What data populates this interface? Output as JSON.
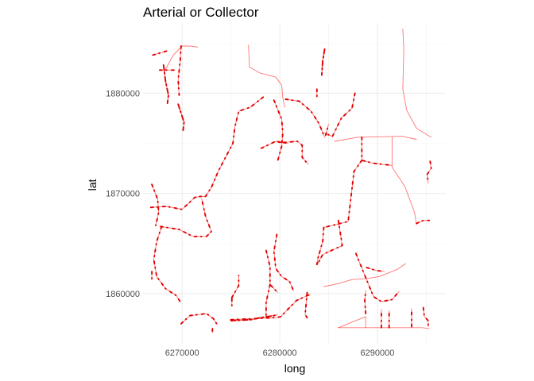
{
  "chart_data": {
    "type": "line",
    "title": "Arterial or Collector",
    "xlabel": "long",
    "ylabel": "lat",
    "xlim": [
      6266000,
      6297000
    ],
    "ylim": [
      1855000,
      1887000
    ],
    "xticks": [
      6270000,
      6280000,
      6290000
    ],
    "xtick_labels": [
      "6270000",
      "6280000",
      "6290000"
    ],
    "yticks": [
      1860000,
      1870000,
      1880000
    ],
    "ytick_labels": [
      "1860000",
      "1870000",
      "1880000"
    ],
    "grid": true,
    "legend": "none",
    "line_color": "#ff0000",
    "series": [
      {
        "d": [
          0
        ],
        "points": [
          [
            6268200,
            1882200
          ],
          [
            6269100,
            1883800
          ],
          [
            6270000,
            1884700
          ],
          [
            6270800,
            1884700
          ],
          [
            6271600,
            1884600
          ]
        ]
      },
      {
        "d": [
          1
        ],
        "points": [
          [
            6267000,
            1883800
          ],
          [
            6268400,
            1884200
          ]
        ]
      },
      {
        "d": [
          2
        ],
        "points": [
          [
            6268100,
            1882800
          ],
          [
            6268300,
            1881200
          ],
          [
            6268600,
            1879800
          ],
          [
            6268500,
            1879000
          ]
        ]
      },
      {
        "d": [
          1
        ],
        "points": [
          [
            6267700,
            1882300
          ],
          [
            6269200,
            1882300
          ]
        ]
      },
      {
        "d": [
          1
        ],
        "points": [
          [
            6269900,
            1884700
          ],
          [
            6269800,
            1883200
          ],
          [
            6269600,
            1881300
          ],
          [
            6269700,
            1879800
          ]
        ]
      },
      {
        "d": [
          2
        ],
        "points": [
          [
            6269600,
            1878900
          ],
          [
            6269900,
            1878000
          ],
          [
            6270200,
            1877100
          ],
          [
            6270100,
            1876300
          ]
        ]
      },
      {
        "d": [
          0
        ],
        "points": [
          [
            6276800,
            1884800
          ],
          [
            6276900,
            1882600
          ],
          [
            6278000,
            1882000
          ],
          [
            6279600,
            1881600
          ],
          [
            6280200,
            1880800
          ],
          [
            6280300,
            1879600
          ],
          [
            6280500,
            1878600
          ]
        ]
      },
      {
        "d": [
          1
        ],
        "points": [
          [
            6280600,
            1879400
          ],
          [
            6282000,
            1879200
          ],
          [
            6283200,
            1878200
          ],
          [
            6284000,
            1877000
          ],
          [
            6284600,
            1875600
          ]
        ]
      },
      {
        "d": [
          1
        ],
        "points": [
          [
            6279400,
            1879300
          ],
          [
            6280200,
            1877400
          ],
          [
            6280300,
            1876000
          ],
          [
            6280200,
            1874700
          ],
          [
            6279800,
            1873300
          ]
        ]
      },
      {
        "d": [
          1
        ],
        "points": [
          [
            6278300,
            1879600
          ],
          [
            6277000,
            1878600
          ],
          [
            6275800,
            1878200
          ],
          [
            6275400,
            1876600
          ],
          [
            6275200,
            1875000
          ],
          [
            6274500,
            1873700
          ],
          [
            6273700,
            1872200
          ],
          [
            6273000,
            1870600
          ],
          [
            6272400,
            1869700
          ],
          [
            6271700,
            1869700
          ]
        ]
      },
      {
        "d": [
          1
        ],
        "points": [
          [
            6279900,
            1875100
          ],
          [
            6280700,
            1875100
          ],
          [
            6281800,
            1875200
          ],
          [
            6282300,
            1874800
          ],
          [
            6282300,
            1873600
          ],
          [
            6282900,
            1872900
          ]
        ]
      },
      {
        "d": [
          1
        ],
        "points": [
          [
            6278100,
            1874500
          ],
          [
            6279600,
            1875200
          ],
          [
            6280800,
            1875000
          ]
        ]
      },
      {
        "d": [
          2
        ],
        "points": [
          [
            6284600,
            1884400
          ],
          [
            6284400,
            1883200
          ],
          [
            6284300,
            1881800
          ]
        ]
      },
      {
        "d": [
          1
        ],
        "points": [
          [
            6283800,
            1880400
          ],
          [
            6283800,
            1879600
          ]
        ]
      },
      {
        "d": [
          0
        ],
        "points": [
          [
            6292600,
            1886400
          ],
          [
            6292700,
            1884400
          ],
          [
            6292600,
            1880400
          ],
          [
            6293000,
            1878300
          ],
          [
            6294000,
            1876500
          ],
          [
            6295500,
            1875600
          ]
        ]
      },
      {
        "d": [
          0
        ],
        "points": [
          [
            6285600,
            1875200
          ],
          [
            6288000,
            1875600
          ],
          [
            6292500,
            1875700
          ],
          [
            6294000,
            1875400
          ]
        ]
      },
      {
        "d": [
          1
        ],
        "points": [
          [
            6287700,
            1880000
          ],
          [
            6287400,
            1878500
          ],
          [
            6286300,
            1877500
          ],
          [
            6285400,
            1875700
          ],
          [
            6284600,
            1876000
          ]
        ]
      },
      {
        "d": [
          1
        ],
        "points": [
          [
            6284700,
            1875800
          ],
          [
            6285000,
            1876900
          ]
        ]
      },
      {
        "d": [
          1
        ],
        "points": [
          [
            6288400,
            1875600
          ],
          [
            6288400,
            1873300
          ],
          [
            6289600,
            1873000
          ],
          [
            6291500,
            1872800
          ]
        ]
      },
      {
        "d": [
          0
        ],
        "points": [
          [
            6291500,
            1875600
          ],
          [
            6291500,
            1872600
          ],
          [
            6292800,
            1870700
          ],
          [
            6293800,
            1868100
          ],
          [
            6294000,
            1866900
          ]
        ]
      },
      {
        "d": [
          1
        ],
        "points": [
          [
            6294000,
            1867000
          ],
          [
            6294700,
            1867300
          ],
          [
            6295300,
            1867300
          ]
        ]
      },
      {
        "d": [
          1
        ],
        "points": [
          [
            6295400,
            1873200
          ],
          [
            6295500,
            1872500
          ],
          [
            6295100,
            1871900
          ],
          [
            6295200,
            1871000
          ]
        ]
      },
      {
        "d": [
          1
        ],
        "points": [
          [
            6288400,
            1873300
          ],
          [
            6287600,
            1872200
          ],
          [
            6287300,
            1869700
          ],
          [
            6287000,
            1867200
          ],
          [
            6285800,
            1866900
          ],
          [
            6284500,
            1866600
          ]
        ]
      },
      {
        "d": [
          1
        ],
        "points": [
          [
            6286000,
            1867300
          ],
          [
            6286400,
            1864800
          ],
          [
            6284400,
            1863900
          ],
          [
            6283900,
            1863000
          ]
        ]
      },
      {
        "d": [
          1
        ],
        "points": [
          [
            6284500,
            1866600
          ],
          [
            6284400,
            1865200
          ],
          [
            6283900,
            1863500
          ],
          [
            6283800,
            1862900
          ]
        ]
      },
      {
        "d": [
          1
        ],
        "points": [
          [
            6266900,
            1870900
          ],
          [
            6267500,
            1869400
          ],
          [
            6267600,
            1868100
          ],
          [
            6267300,
            1866800
          ]
        ]
      },
      {
        "d": [
          1
        ],
        "points": [
          [
            6266800,
            1868600
          ],
          [
            6268400,
            1868700
          ],
          [
            6270000,
            1868400
          ],
          [
            6271300,
            1869600
          ],
          [
            6271900,
            1869700
          ]
        ]
      },
      {
        "d": [
          1
        ],
        "points": [
          [
            6267800,
            1866700
          ],
          [
            6269700,
            1866400
          ],
          [
            6271100,
            1865700
          ],
          [
            6272500,
            1865700
          ],
          [
            6273000,
            1866200
          ],
          [
            6272400,
            1867700
          ],
          [
            6272000,
            1869500
          ]
        ]
      },
      {
        "d": [
          1
        ],
        "points": [
          [
            6267900,
            1866700
          ],
          [
            6267400,
            1865200
          ],
          [
            6267100,
            1863400
          ],
          [
            6267400,
            1861700
          ],
          [
            6268300,
            1860500
          ],
          [
            6269400,
            1859800
          ],
          [
            6269800,
            1859200
          ]
        ]
      },
      {
        "d": [
          1
        ],
        "points": [
          [
            6266900,
            1862200
          ],
          [
            6266900,
            1861400
          ]
        ]
      },
      {
        "d": [
          1
        ],
        "points": [
          [
            6269900,
            1857000
          ],
          [
            6270800,
            1857800
          ],
          [
            6272500,
            1858000
          ],
          [
            6273200,
            1857500
          ],
          [
            6273600,
            1856900
          ]
        ]
      },
      {
        "d": [
          1
        ],
        "points": [
          [
            6273100,
            1856500
          ],
          [
            6273100,
            1856100
          ]
        ]
      },
      {
        "d": [
          1
        ],
        "points": [
          [
            6275000,
            1857400
          ],
          [
            6279600,
            1857600
          ],
          [
            6280100,
            1857700
          ],
          [
            6280900,
            1858500
          ],
          [
            6281700,
            1859300
          ],
          [
            6282800,
            1859800
          ],
          [
            6283100,
            1859900
          ]
        ]
      },
      {
        "d": [
          2
        ],
        "points": [
          [
            6275000,
            1857300
          ],
          [
            6277100,
            1857400
          ],
          [
            6278000,
            1857600
          ],
          [
            6279400,
            1857800
          ],
          [
            6279800,
            1857900
          ]
        ]
      },
      {
        "d": [
          1
        ],
        "points": [
          [
            6275100,
            1859600
          ],
          [
            6275800,
            1860800
          ],
          [
            6275800,
            1861800
          ]
        ]
      },
      {
        "d": [
          1
        ],
        "points": [
          [
            6275100,
            1859500
          ],
          [
            6275100,
            1858800
          ]
        ]
      },
      {
        "d": [
          1
        ],
        "points": [
          [
            6278600,
            1864300
          ],
          [
            6279000,
            1862700
          ],
          [
            6279000,
            1860900
          ],
          [
            6279800,
            1860100
          ]
        ]
      },
      {
        "d": [
          1
        ],
        "points": [
          [
            6279000,
            1860900
          ],
          [
            6278600,
            1859100
          ],
          [
            6278600,
            1857700
          ]
        ]
      },
      {
        "d": [
          1
        ],
        "points": [
          [
            6279700,
            1865900
          ],
          [
            6279400,
            1864200
          ],
          [
            6279600,
            1862500
          ],
          [
            6280200,
            1861700
          ],
          [
            6281000,
            1861200
          ],
          [
            6281400,
            1860300
          ]
        ]
      },
      {
        "d": [
          1
        ],
        "points": [
          [
            6282800,
            1860100
          ],
          [
            6282600,
            1857900
          ],
          [
            6282800,
            1857600
          ]
        ]
      },
      {
        "d": [
          0
        ],
        "points": [
          [
            6284500,
            1860700
          ],
          [
            6286000,
            1861000
          ],
          [
            6287400,
            1861400
          ],
          [
            6288900,
            1861500
          ],
          [
            6290200,
            1861700
          ],
          [
            6292000,
            1862400
          ],
          [
            6292900,
            1863000
          ]
        ]
      },
      {
        "d": [
          1
        ],
        "points": [
          [
            6287800,
            1864000
          ],
          [
            6288800,
            1861600
          ],
          [
            6289600,
            1859700
          ],
          [
            6290400,
            1859200
          ],
          [
            6291500,
            1859400
          ],
          [
            6292200,
            1860200
          ]
        ]
      },
      {
        "d": [
          1
        ],
        "points": [
          [
            6288900,
            1862600
          ],
          [
            6289900,
            1862300
          ],
          [
            6290700,
            1862200
          ]
        ]
      },
      {
        "d": [
          0
        ],
        "points": [
          [
            6286000,
            1856600
          ],
          [
            6288800,
            1857700
          ],
          [
            6288800,
            1856600
          ]
        ]
      },
      {
        "d": [
          0
        ],
        "points": [
          [
            6286000,
            1856600
          ],
          [
            6294600,
            1856600
          ],
          [
            6295300,
            1856500
          ]
        ]
      },
      {
        "d": [
          1
        ],
        "points": [
          [
            6290400,
            1856600
          ],
          [
            6290400,
            1858400
          ]
        ]
      },
      {
        "d": [
          1
        ],
        "points": [
          [
            6291200,
            1856600
          ],
          [
            6291200,
            1858300
          ]
        ]
      },
      {
        "d": [
          1
        ],
        "points": [
          [
            6293500,
            1856700
          ],
          [
            6293500,
            1858500
          ]
        ]
      },
      {
        "d": [
          1
        ],
        "points": [
          [
            6294700,
            1858600
          ],
          [
            6294800,
            1857700
          ],
          [
            6295200,
            1857300
          ],
          [
            6295200,
            1856700
          ]
        ]
      },
      {
        "d": [
          1
        ],
        "points": [
          [
            6288800,
            1858000
          ],
          [
            6288700,
            1859300
          ],
          [
            6288800,
            1860300
          ]
        ]
      }
    ]
  }
}
